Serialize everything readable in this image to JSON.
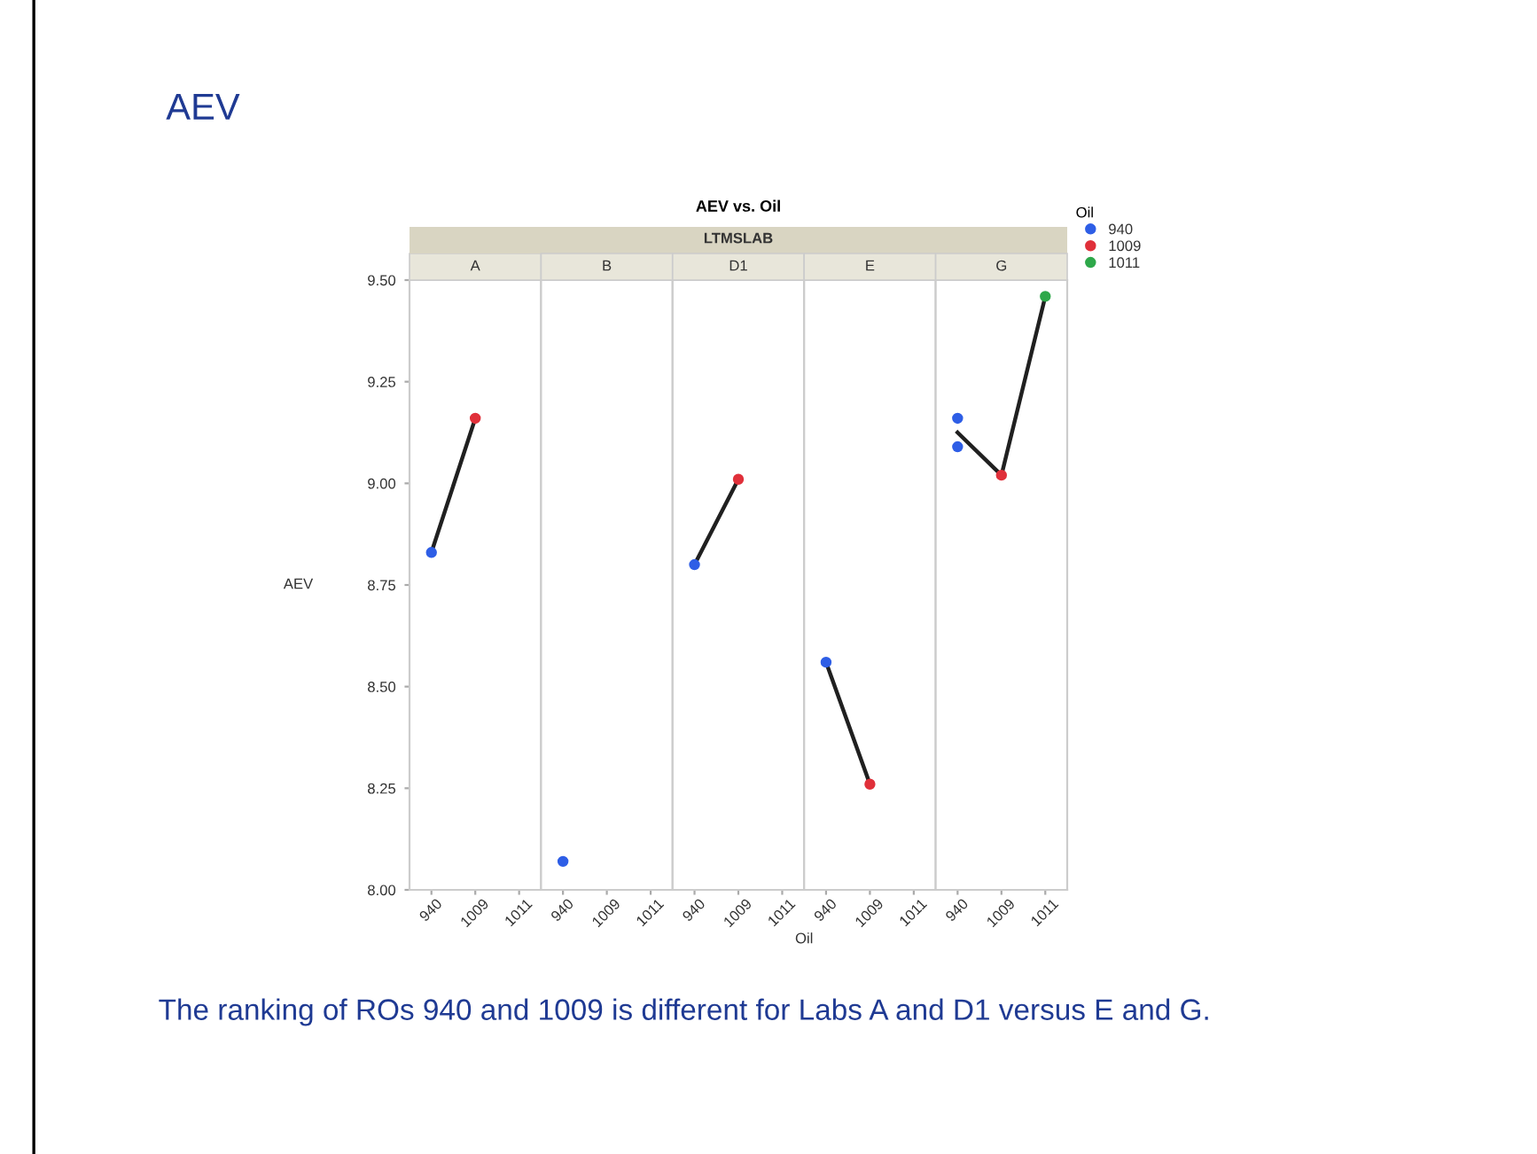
{
  "chart_data": [
    {
      "type": "scatter",
      "title": "A",
      "ylabel": "AEV",
      "categories": [
        "940",
        "1009",
        "1011"
      ],
      "ylim": [
        8.0,
        9.5
      ],
      "yticks": [
        {
          "value": 8.0,
          "label": "8.00"
        },
        {
          "value": 8.25,
          "label": "8.25"
        },
        {
          "value": 8.5,
          "label": "8.50"
        },
        {
          "value": 8.75,
          "label": "8.75"
        },
        {
          "value": 9.0,
          "label": "9.00"
        },
        {
          "value": 9.25,
          "label": "9.25"
        },
        {
          "value": 9.5,
          "label": "9.50"
        }
      ],
      "marker": "circle",
      "annotations": [
        "AEV",
        "AEV vs. Oil",
        "LTMSLAB",
        "The ranking of ROs 940 and 1009 is different for Labs A and D1 versus E and G."
      ],
      "series": [
        {
          "color": "#2e5ee6",
          "values": [
            8.83,
            null,
            null
          ]
        },
        {
          "color": "#e0303a",
          "values": [
            null,
            9.16,
            null
          ]
        },
        {
          "type": "line",
          "marker": "none",
          "color": "#202020",
          "values": [
            8.83,
            9.16,
            null
          ]
        }
      ]
    },
    {
      "type": "scatter",
      "title": "B",
      "categories": [
        "940",
        "1009",
        "1011"
      ],
      "ylim": [
        8.0,
        9.5
      ],
      "tick_labels": "x",
      "marker": "circle",
      "series": [
        {
          "color": "#2e5ee6",
          "values": [
            8.07,
            null,
            null
          ]
        }
      ]
    },
    {
      "type": "scatter",
      "title": "D1",
      "xlabel": "Oil",
      "categories": [
        "940",
        "1009",
        "1011"
      ],
      "ylim": [
        8.0,
        9.5
      ],
      "tick_labels": "x",
      "marker": "circle",
      "series": [
        {
          "color": "#2e5ee6",
          "values": [
            8.8,
            null,
            null
          ]
        },
        {
          "color": "#e0303a",
          "values": [
            null,
            9.01,
            null
          ]
        },
        {
          "type": "line",
          "marker": "none",
          "color": "#202020",
          "values": [
            8.8,
            9.01,
            null
          ]
        }
      ]
    },
    {
      "type": "scatter",
      "title": "E",
      "categories": [
        "940",
        "1009",
        "1011"
      ],
      "ylim": [
        8.0,
        9.5
      ],
      "tick_labels": "x",
      "marker": "circle",
      "series": [
        {
          "color": "#2e5ee6",
          "values": [
            8.56,
            null,
            null
          ]
        },
        {
          "color": "#e0303a",
          "values": [
            null,
            8.26,
            null
          ]
        },
        {
          "type": "line",
          "marker": "none",
          "color": "#202020",
          "values": [
            8.56,
            8.26,
            null
          ]
        }
      ]
    },
    {
      "type": "scatter",
      "title": "G",
      "categories": [
        "940",
        "1009",
        "1011"
      ],
      "ylim": [
        8.0,
        9.5
      ],
      "tick_labels": "x",
      "marker": "circle",
      "legend": "right",
      "legend_title": "Oil",
      "series": [
        {
          "name": "940",
          "color": "#2e5ee6",
          "values": [
            9.16,
            null,
            null
          ]
        },
        {
          "color": "#2e5ee6",
          "values": [
            9.09,
            null,
            null
          ]
        },
        {
          "name": "1009",
          "color": "#e0303a",
          "values": [
            null,
            9.02,
            null
          ]
        },
        {
          "name": "1011",
          "color": "#2ea84a",
          "values": [
            null,
            null,
            9.46
          ]
        },
        {
          "type": "line",
          "marker": "none",
          "color": "#202020",
          "values": [
            9.125,
            9.02,
            9.46
          ]
        }
      ]
    }
  ]
}
